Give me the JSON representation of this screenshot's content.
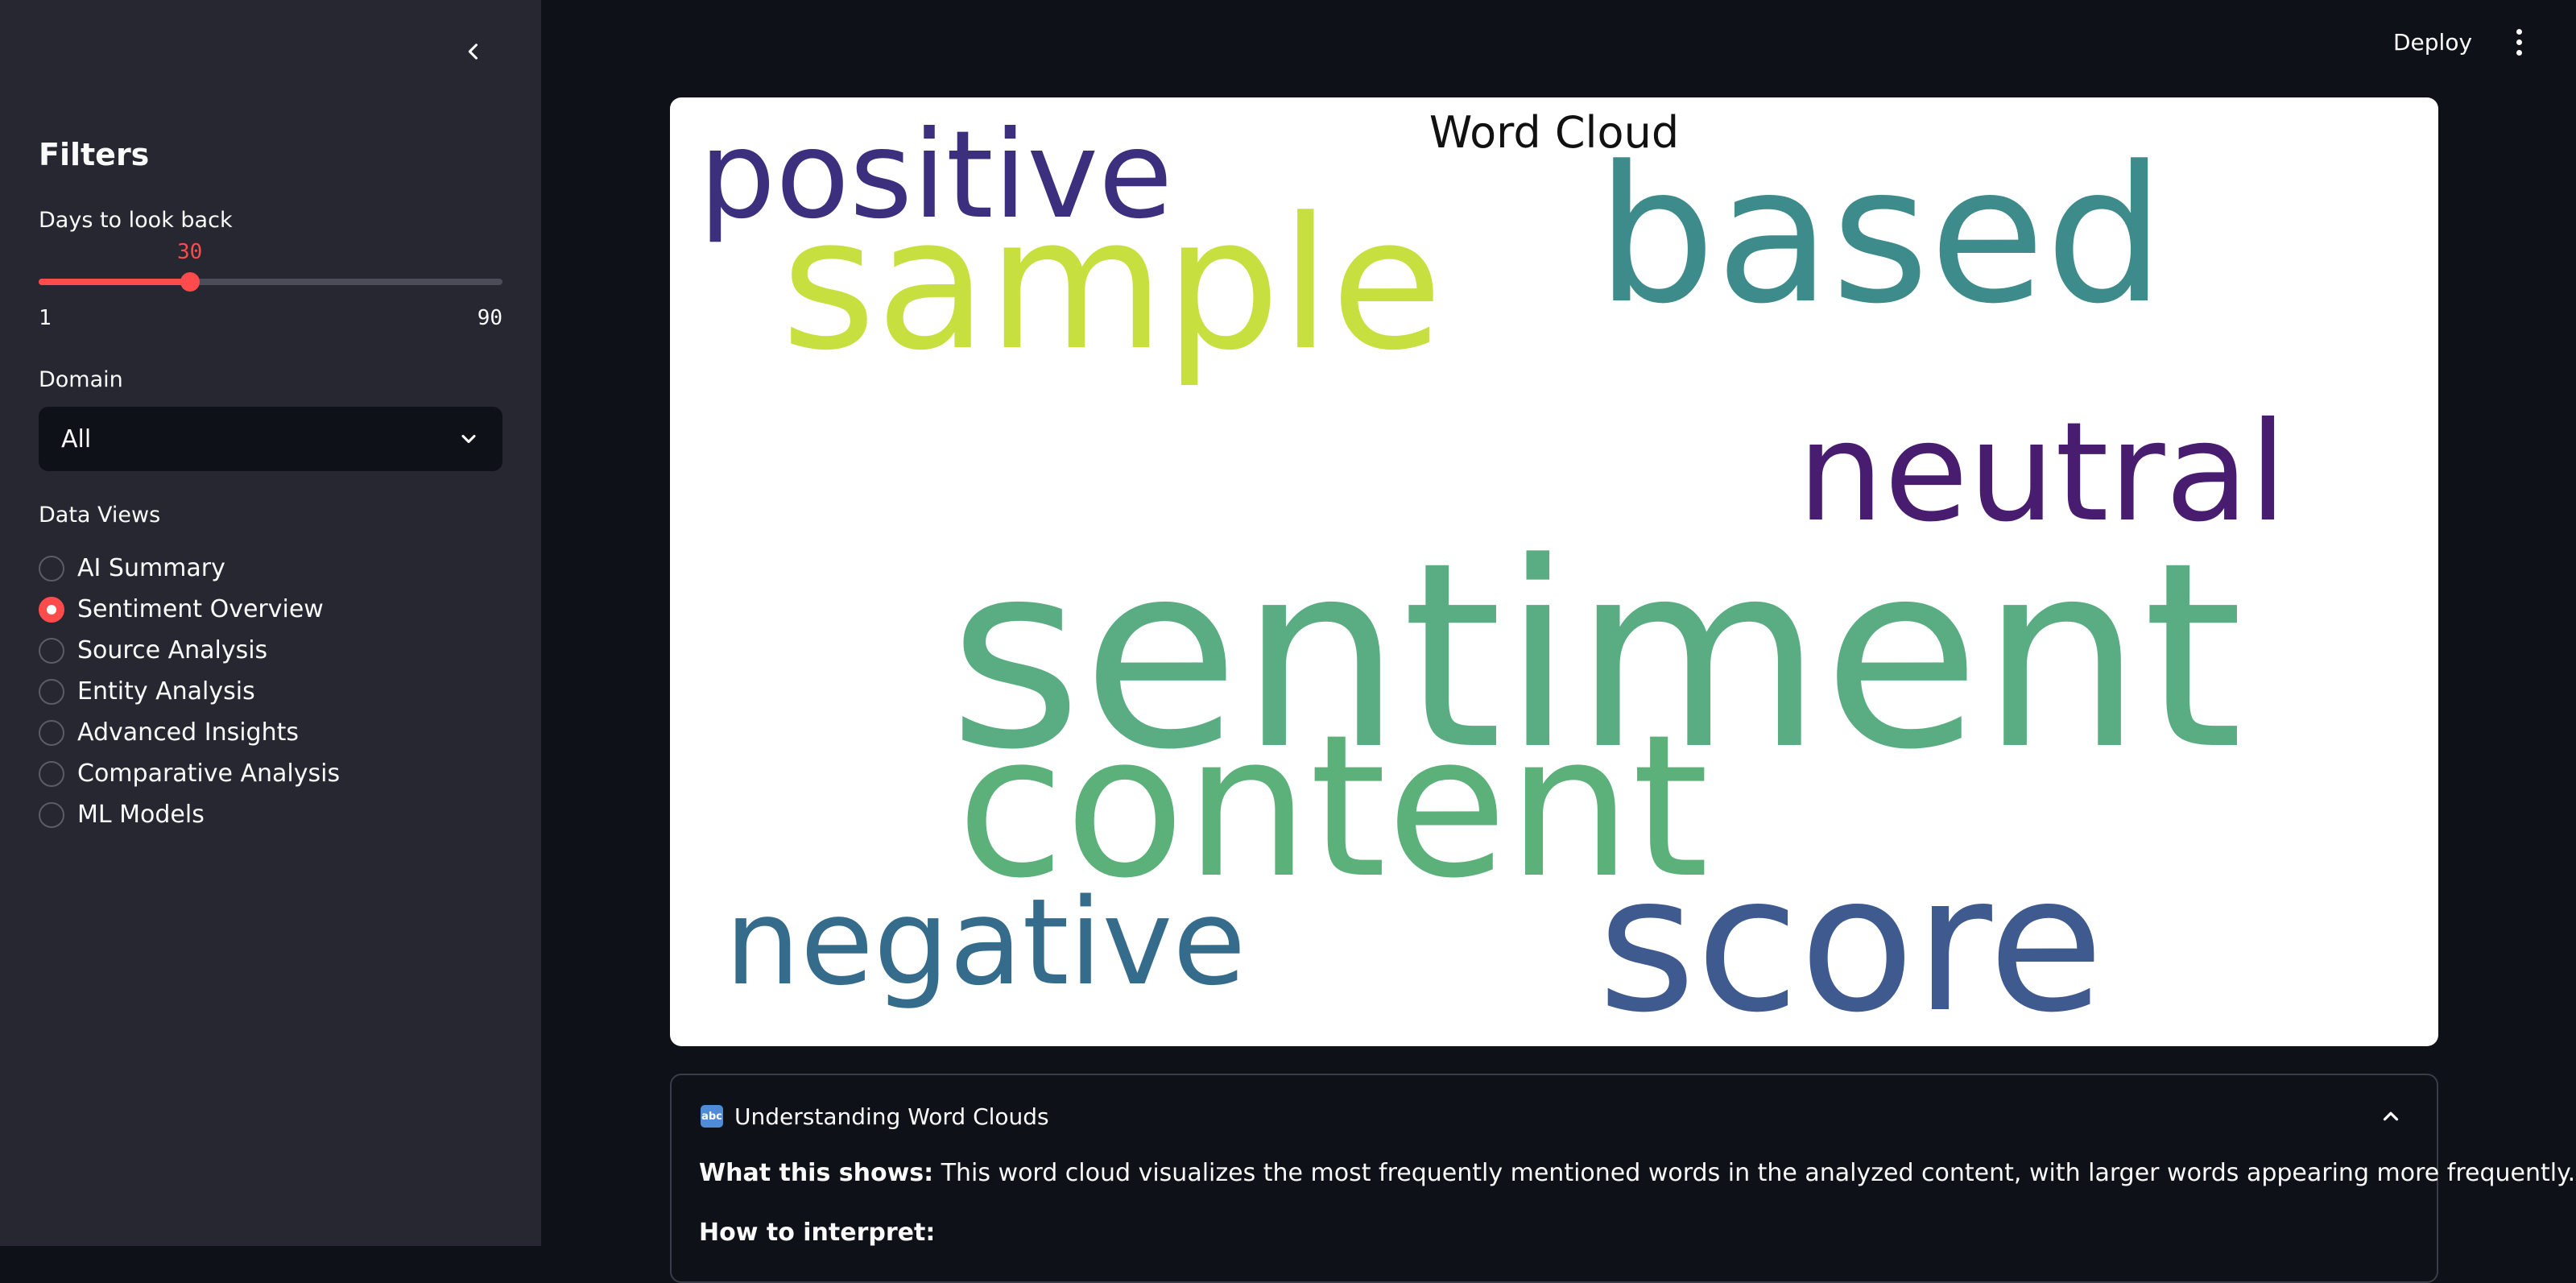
{
  "sidebar": {
    "title": "Filters",
    "days_slider": {
      "label": "Days to look back",
      "value": 30,
      "min": 1,
      "max": 90,
      "value_text": "30",
      "min_text": "1",
      "max_text": "90"
    },
    "domain": {
      "label": "Domain",
      "selected": "All"
    },
    "data_views": {
      "label": "Data Views",
      "selected_index": 1,
      "options": [
        "AI Summary",
        "Sentiment Overview",
        "Source Analysis",
        "Entity Analysis",
        "Advanced Insights",
        "Comparative Analysis",
        "ML Models"
      ]
    }
  },
  "header": {
    "deploy_label": "Deploy"
  },
  "word_cloud": {
    "title": "Word Cloud",
    "words": [
      {
        "text": "positive",
        "color": "#3b2f7e"
      },
      {
        "text": "sample",
        "color": "#c8df40"
      },
      {
        "text": "based",
        "color": "#3e8b8b"
      },
      {
        "text": "neutral",
        "color": "#481d6f"
      },
      {
        "text": "sentiment",
        "color": "#5aad82"
      },
      {
        "text": "content",
        "color": "#5cb07a"
      },
      {
        "text": "negative",
        "color": "#356b8b"
      },
      {
        "text": "score",
        "color": "#3f5a8f"
      }
    ]
  },
  "expander": {
    "icon": "abc-icon",
    "title": "Understanding Word Clouds",
    "what_label": "What this shows:",
    "what_text": " This word cloud visualizes the most frequently mentioned words in the analyzed content, with larger words appearing more frequently.",
    "how_label": "How to interpret:"
  }
}
